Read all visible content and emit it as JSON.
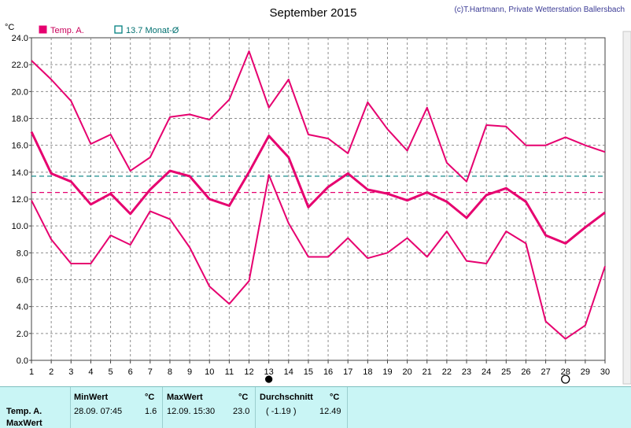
{
  "chart_data": {
    "type": "line",
    "title": "September 2015",
    "credit": "(c)T.Hartmann, Private Wetterstation Ballersbach",
    "ylabel": "°C",
    "ylim": [
      0,
      24
    ],
    "yticks": [
      "0.0",
      "2.0",
      "4.0",
      "6.0",
      "8.0",
      "10.0",
      "12.0",
      "14.0",
      "16.0",
      "18.0",
      "20.0",
      "22.0",
      "24.0"
    ],
    "x": [
      1,
      2,
      3,
      4,
      5,
      6,
      7,
      8,
      9,
      10,
      11,
      12,
      13,
      14,
      15,
      16,
      17,
      18,
      19,
      20,
      21,
      22,
      23,
      24,
      25,
      26,
      27,
      28,
      29,
      30
    ],
    "grid": true,
    "legend": [
      {
        "label": "Temp. A.",
        "color": "#e6006f",
        "marker": "filled-square"
      },
      {
        "label": "13.7 Monat-Ø",
        "color": "#008080",
        "marker": "open-square"
      }
    ],
    "series": [
      {
        "name": "max",
        "color": "#e6006f",
        "values": [
          22.3,
          20.9,
          19.3,
          16.1,
          16.8,
          14.1,
          15.1,
          18.1,
          18.3,
          17.9,
          19.4,
          23.0,
          18.8,
          20.9,
          16.8,
          16.5,
          15.4,
          19.2,
          17.2,
          15.6,
          18.8,
          14.7,
          13.3,
          17.5,
          17.4,
          16.0,
          16.0,
          16.6,
          16.0,
          15.5
        ]
      },
      {
        "name": "mean",
        "color": "#e6006f",
        "values": [
          17.0,
          13.9,
          13.3,
          11.6,
          12.4,
          10.9,
          12.7,
          14.1,
          13.7,
          12.0,
          11.5,
          14.0,
          16.7,
          15.1,
          11.4,
          12.9,
          13.9,
          12.7,
          12.4,
          11.9,
          12.5,
          11.8,
          10.6,
          12.3,
          12.8,
          11.8,
          9.3,
          8.7,
          9.9,
          11.0
        ]
      },
      {
        "name": "min",
        "color": "#e6006f",
        "values": [
          11.9,
          9.0,
          7.2,
          7.2,
          9.3,
          8.6,
          11.1,
          10.5,
          8.4,
          5.5,
          4.2,
          5.9,
          13.8,
          10.2,
          7.7,
          7.7,
          9.1,
          7.6,
          8.0,
          9.1,
          7.7,
          9.6,
          7.4,
          7.2,
          9.6,
          8.7,
          2.9,
          1.6,
          2.6,
          7.0
        ]
      }
    ],
    "reference_lines": [
      {
        "value": 13.7,
        "color": "#008080",
        "style": "dashed"
      },
      {
        "value": 12.49,
        "color": "#e6006f",
        "style": "dashed"
      }
    ],
    "day_markers": [
      {
        "day": 13,
        "symbol": "filled-circle"
      },
      {
        "day": 28,
        "symbol": "open-circle"
      }
    ]
  },
  "stats": {
    "row_label_1": "Temp. A.",
    "row_label_2": "MaxWert",
    "min_header": "MinWert",
    "max_header": "MaxWert",
    "avg_header": "Durchschnitt",
    "unit": "°C",
    "min_time": "28.09.  07:45",
    "min_value": "1.6",
    "max_time": "12.09.  15:30",
    "max_value": "23.0",
    "avg_delta": "( -1.19 )",
    "avg_value": "12.49"
  },
  "colors": {
    "line": "#e6006f",
    "monthly_avg": "#008080",
    "grid": "#8c8c8c",
    "panel_bg": "#c9f5f5"
  }
}
